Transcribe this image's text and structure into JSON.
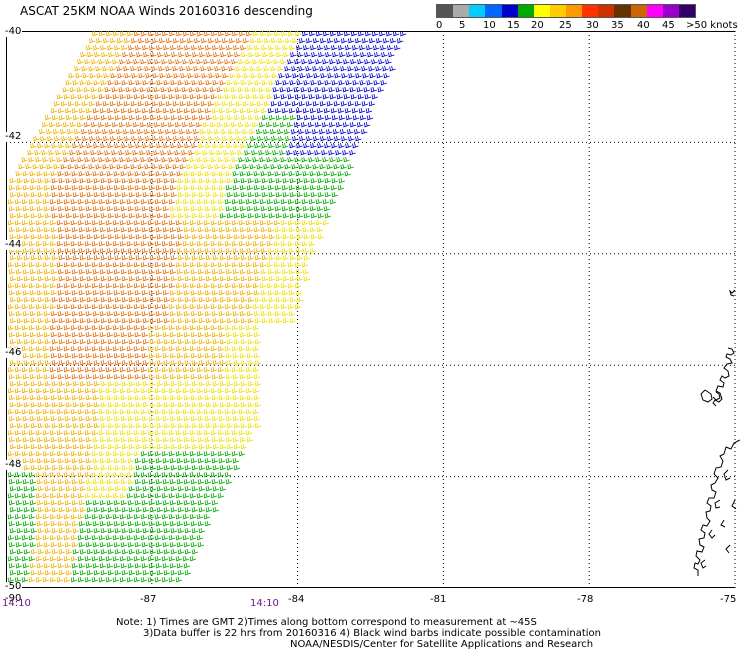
{
  "title": "ASCAT 25KM NOAA Winds 20160316 descending",
  "colorbar": {
    "colors": [
      "#555555",
      "#aaaaaa",
      "#00ccff",
      "#0066ff",
      "#0000cc",
      "#00aa00",
      "#ffff00",
      "#ffcc00",
      "#ff9900",
      "#ff3300",
      "#cc3300",
      "#663300",
      "#cc6600",
      "#ff00ff",
      "#9900cc",
      "#330066"
    ],
    "labels": [
      "0",
      "5",
      "10",
      "15",
      "20",
      "25",
      "30",
      "35",
      "40",
      "45",
      ">50 knots"
    ]
  },
  "axes": {
    "lat_labels": [
      "-40",
      "-42",
      "-44",
      "-46",
      "-48",
      "-50"
    ],
    "lon_labels": [
      "-87",
      "-84",
      "-81",
      "-78",
      "-75"
    ],
    "lon_ticks": [
      -87,
      -84,
      -81,
      -78,
      -75
    ],
    "lat_ticks": [
      -40,
      -42,
      -44,
      -46,
      -48,
      -50
    ],
    "lon_range": [
      -90,
      -75
    ],
    "lat_range": [
      -50,
      -40
    ],
    "corner_label": "-90",
    "grid": "dotted"
  },
  "time_labels": [
    "14:10",
    "14:10"
  ],
  "notes": {
    "line1": "Note: 1) Times are GMT 2)Times along bottom correspond to measurement at ~45S",
    "line2": "3)Data buffer is 22 hrs from 20160316 4) Black wind barbs indicate possible contamination",
    "line3": "NOAA/NESDIS/Center for Satellite Applications and Research"
  },
  "swath": {
    "wind_colors": {
      "orange": "#e07010",
      "gold": "#f0b000",
      "yellow": "#f0e000",
      "green": "#00aa00",
      "blue": "#0000cc",
      "lightblue": "#0077dd"
    }
  }
}
